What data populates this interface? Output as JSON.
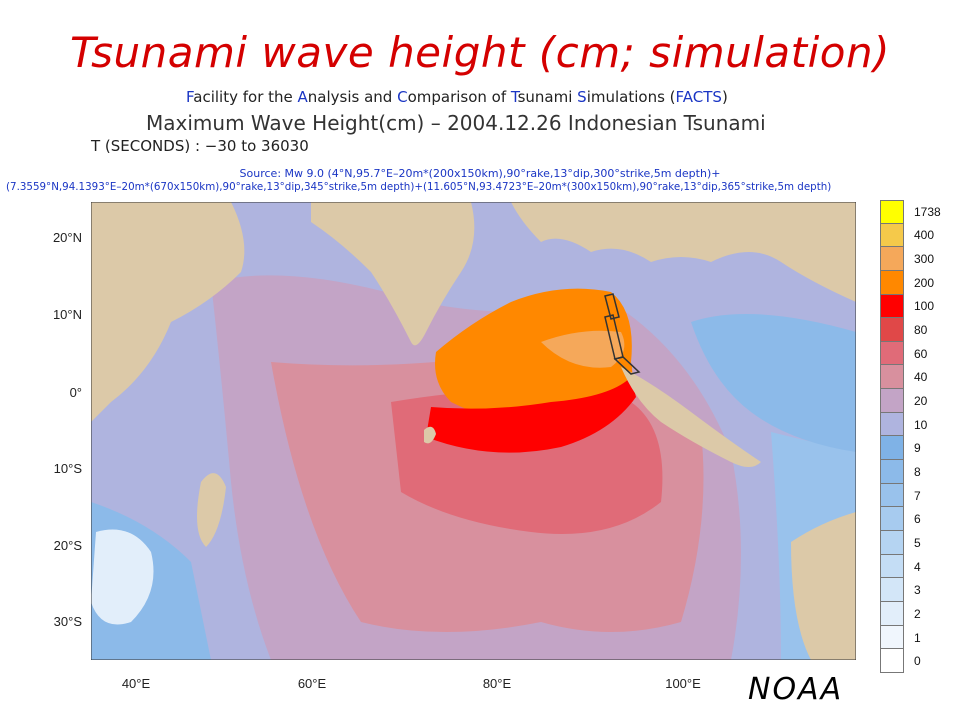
{
  "title": "Tsunami wave height (cm; simulation)",
  "facility": {
    "segments": [
      {
        "text": "F",
        "highlight": true
      },
      {
        "text": "acility for the ",
        "highlight": false
      },
      {
        "text": "A",
        "highlight": true
      },
      {
        "text": "nalysis and ",
        "highlight": false
      },
      {
        "text": "C",
        "highlight": true
      },
      {
        "text": "omparison of ",
        "highlight": false
      },
      {
        "text": "T",
        "highlight": true
      },
      {
        "text": "sunami ",
        "highlight": false
      },
      {
        "text": "S",
        "highlight": true
      },
      {
        "text": "imulations (",
        "highlight": false
      },
      {
        "text": "FACTS",
        "highlight": true
      },
      {
        "text": ")",
        "highlight": false
      }
    ]
  },
  "map_title": "Maximum Wave Height(cm) – 2004.12.26 Indonesian Tsunami",
  "time_range": "T (SECONDS) : −30 to 36030",
  "source_line1": "Source: Mw 9.0 (4°N,95.7°E–20m*(200x150km),90°rake,13°dip,300°strike,5m depth)+",
  "source_line2": "(7.3559°N,94.1393°E–20m*(670x150km),90°rake,13°dip,345°strike,5m depth)+(11.605°N,93.4723°E–20m*(300x150km),90°rake,13°dip,365°strike,5m depth)",
  "lat_labels": [
    "20°N",
    "10°N",
    "0°",
    "10°S",
    "20°S",
    "30°S"
  ],
  "lon_labels": [
    "40°E",
    "60°E",
    "80°E",
    "100°E"
  ],
  "colorbar": {
    "labels": [
      "1738",
      "400",
      "300",
      "200",
      "100",
      "80",
      "60",
      "40",
      "20",
      "10",
      "9",
      "8",
      "7",
      "6",
      "5",
      "4",
      "3",
      "2",
      "1",
      "0"
    ],
    "colors": [
      "#ffff00",
      "#f5c94a",
      "#f5a85a",
      "#ff8800",
      "#ff0000",
      "#e04848",
      "#e06b78",
      "#d8909e",
      "#c3a4c6",
      "#afb4df",
      "#7fb2e6",
      "#8cbae9",
      "#99c2ec",
      "#a7cbef",
      "#b5d4f2",
      "#c4ddf5",
      "#d3e6f8",
      "#e2eefa",
      "#f0f6fd",
      "#ffffff"
    ]
  },
  "map_colors": {
    "land": "#dcc9a8",
    "ocean_low": "#afb4df",
    "ocean_mid": "#c3a4c6",
    "orange": "#ff8800",
    "red": "#ff0000",
    "light_orange": "#f5a85a"
  },
  "credit": "NOAA"
}
